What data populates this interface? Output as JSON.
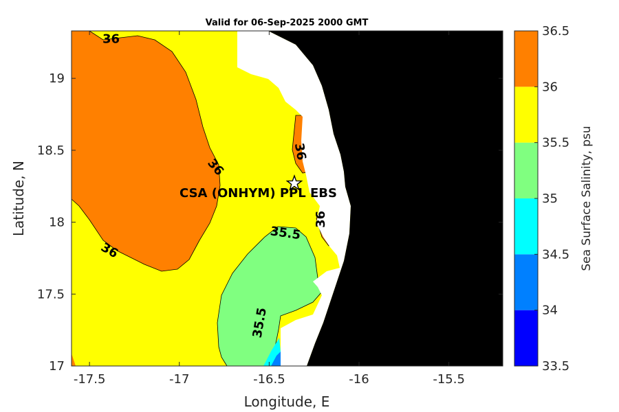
{
  "title": "Valid for 06-Sep-2025 2000 GMT",
  "chart_data": {
    "type": "contour",
    "title": "Valid for 06-Sep-2025 2000 GMT",
    "xlabel": "Longitude, E",
    "ylabel": "Latitude, N",
    "xlim": [
      -17.6,
      -15.2
    ],
    "ylim": [
      17.0,
      19.33
    ],
    "x_ticks": [
      -17.5,
      -17,
      -16.5,
      -16,
      -15.5
    ],
    "x_tick_labels": [
      "-17.5",
      "-17",
      "-16.5",
      "-16",
      "-15.5"
    ],
    "y_ticks": [
      17,
      17.5,
      18,
      18.5,
      19
    ],
    "y_tick_labels": [
      "17",
      "17.5",
      "18",
      "18.5",
      "19"
    ],
    "colorbar": {
      "label": "Sea Surface Salinity, psu",
      "levels": [
        33.5,
        34,
        34.5,
        35,
        35.5,
        36,
        36.5
      ],
      "level_labels": [
        "33.5",
        "34",
        "34.5",
        "35",
        "35.5",
        "36",
        "36.5"
      ],
      "colors": [
        "#0000ff",
        "#0080ff",
        "#00ffff",
        "#80ff80",
        "#ffff00",
        "#ff8000"
      ]
    },
    "land_color": "#000000",
    "no_data_color": "#ffffff",
    "contour_labels": [
      {
        "text": "36",
        "lon": -17.38,
        "lat": 19.27,
        "rotation": 0
      },
      {
        "text": "36",
        "lon": -16.8,
        "lat": 18.38,
        "rotation": 50
      },
      {
        "text": "36",
        "lon": -17.39,
        "lat": 17.8,
        "rotation": 30
      },
      {
        "text": "36",
        "lon": -16.33,
        "lat": 18.49,
        "rotation": 80
      },
      {
        "text": "36",
        "lon": -16.21,
        "lat": 18.02,
        "rotation": -90
      },
      {
        "text": "35.5",
        "lon": -16.41,
        "lat": 17.92,
        "rotation": 8
      },
      {
        "text": "35.5",
        "lon": -16.55,
        "lat": 17.3,
        "rotation": -80
      }
    ],
    "site": {
      "name": "CSA (ONHYM) PPL EBS",
      "lon": -16.36,
      "lat": 18.27,
      "marker": "star"
    }
  }
}
